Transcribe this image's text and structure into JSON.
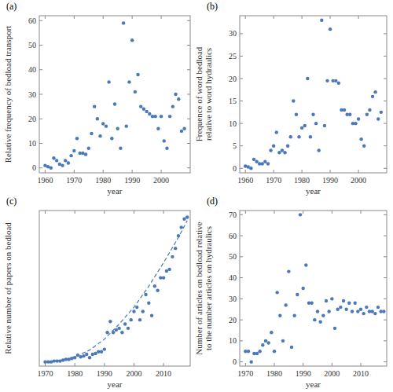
{
  "chart_data": [
    {
      "type": "scatter",
      "title": "(a)",
      "x_label": "year",
      "y_label": "Relative frequency of bedload transport",
      "xlim": [
        1958,
        2010
      ],
      "xticks": [
        1960,
        1970,
        1980,
        1990,
        2000
      ],
      "ylim": [
        -2,
        62
      ],
      "yticks": [
        0,
        10,
        20,
        30,
        40,
        50,
        60
      ],
      "series": [
        {
          "color": "#4a78b8",
          "marker": "circle",
          "x": [
            1960,
            1961,
            1962,
            1963,
            1964,
            1965,
            1966,
            1967,
            1968,
            1969,
            1970,
            1971,
            1972,
            1973,
            1974,
            1975,
            1976,
            1977,
            1978,
            1979,
            1980,
            1981,
            1982,
            1983,
            1984,
            1985,
            1986,
            1987,
            1988,
            1989,
            1990,
            1991,
            1992,
            1993,
            1994,
            1995,
            1996,
            1997,
            1998,
            1999,
            2000,
            2001,
            2002,
            2003,
            2004,
            2005,
            2006,
            2007,
            2008
          ],
          "values": [
            1,
            0.5,
            0,
            4,
            3,
            1.5,
            1,
            3,
            2,
            5,
            7,
            12,
            6,
            6,
            5.5,
            8,
            14,
            25,
            20,
            13,
            18,
            17,
            35,
            12,
            26,
            16,
            8,
            59,
            17,
            35,
            52,
            31,
            38,
            25,
            24,
            23,
            22,
            21,
            21,
            16,
            21,
            11,
            8,
            21,
            25,
            30,
            28,
            15,
            16
          ]
        }
      ]
    },
    {
      "type": "scatter",
      "title": "(b)",
      "x_label": "year",
      "y_label": "Frequence of word bedload\nrelative to word hydraulics",
      "xlim": [
        1958,
        2010
      ],
      "xticks": [
        1960,
        1970,
        1980,
        1990,
        2000
      ],
      "ylim": [
        -1,
        34
      ],
      "yticks": [
        0,
        5,
        10,
        15,
        20,
        25,
        30
      ],
      "series": [
        {
          "color": "#4a78b8",
          "marker": "circle",
          "x": [
            1960,
            1961,
            1962,
            1963,
            1964,
            1965,
            1966,
            1967,
            1968,
            1969,
            1970,
            1971,
            1972,
            1973,
            1974,
            1975,
            1976,
            1977,
            1978,
            1979,
            1980,
            1981,
            1982,
            1983,
            1984,
            1985,
            1986,
            1987,
            1988,
            1989,
            1990,
            1991,
            1992,
            1993,
            1994,
            1995,
            1996,
            1997,
            1998,
            1999,
            2000,
            2001,
            2002,
            2003,
            2004,
            2005,
            2006,
            2007,
            2008
          ],
          "values": [
            0.5,
            0.3,
            0,
            2,
            1.5,
            1,
            1,
            1.5,
            1,
            4,
            5,
            8,
            3.5,
            4,
            3.5,
            5,
            7,
            15,
            12,
            7,
            9,
            9.5,
            20,
            7,
            12,
            10,
            4,
            33,
            9.5,
            19.5,
            31,
            19.5,
            19.5,
            19,
            13,
            13,
            12,
            12,
            10,
            10,
            11,
            6.5,
            5,
            12,
            13,
            16,
            17,
            11,
            12.5
          ]
        }
      ]
    },
    {
      "type": "scatter",
      "title": "(c)",
      "x_label": "year",
      "y_label": "Relative number of papers on bedload",
      "xlim": [
        1968,
        2019
      ],
      "xticks": [
        1970,
        1980,
        1990,
        2000,
        2010
      ],
      "ylim": [
        -5,
        180
      ],
      "tick_labels": "x",
      "series": [
        {
          "color": "#4a78b8",
          "marker": "circle",
          "x": [
            1970,
            1971,
            1972,
            1973,
            1974,
            1975,
            1976,
            1977,
            1978,
            1979,
            1980,
            1981,
            1982,
            1983,
            1984,
            1985,
            1986,
            1987,
            1988,
            1989,
            1990,
            1991,
            1992,
            1993,
            1994,
            1995,
            1996,
            1997,
            1998,
            1999,
            2000,
            2001,
            2002,
            2003,
            2004,
            2005,
            2006,
            2007,
            2008,
            2009,
            2010,
            2011,
            2012,
            2013,
            2014,
            2015,
            2016,
            2017,
            2018
          ],
          "values": [
            0,
            0,
            0,
            1,
            1,
            1,
            2,
            3,
            3,
            4,
            5,
            8,
            6,
            7,
            9,
            5,
            9,
            10,
            12,
            12,
            15,
            35,
            48,
            35,
            38,
            40,
            35,
            45,
            40,
            50,
            60,
            65,
            50,
            60,
            80,
            70,
            55,
            90,
            85,
            100,
            100,
            108,
            110,
            125,
            135,
            150,
            160,
            170,
            172
          ]
        },
        {
          "type": "line",
          "line_style": "dashed",
          "color": "#4a78b8",
          "x": [
            1970,
            1975,
            1980,
            1985,
            1990,
            1995,
            2000,
            2005,
            2010,
            2015,
            2018
          ],
          "values": [
            0,
            2,
            6,
            14,
            27,
            45,
            65,
            90,
            118,
            148,
            168
          ]
        }
      ]
    },
    {
      "type": "scatter",
      "title": "(d)",
      "x_label": "year",
      "y_label": "Number of articles on bedload relative\nto the number articles on hydraulics",
      "xlim": [
        1968,
        2019
      ],
      "xticks": [
        1970,
        1980,
        1990,
        2000,
        2010
      ],
      "ylim": [
        -2,
        72
      ],
      "yticks": [
        0,
        10,
        20,
        30,
        40,
        50,
        60,
        70
      ],
      "series": [
        {
          "color": "#4a78b8",
          "marker": "circle",
          "x": [
            1970,
            1971,
            1972,
            1973,
            1974,
            1975,
            1976,
            1977,
            1978,
            1979,
            1980,
            1981,
            1982,
            1983,
            1984,
            1985,
            1986,
            1987,
            1988,
            1989,
            1990,
            1991,
            1992,
            1993,
            1994,
            1995,
            1996,
            1997,
            1998,
            1999,
            2000,
            2001,
            2002,
            2003,
            2004,
            2005,
            2006,
            2007,
            2008,
            2009,
            2010,
            2011,
            2012,
            2013,
            2014,
            2015,
            2016,
            2017,
            2018
          ],
          "values": [
            5,
            5,
            0,
            4,
            4,
            5,
            8,
            10,
            9,
            14,
            5,
            33,
            22,
            10,
            27,
            43,
            7,
            22,
            32,
            70,
            35,
            46,
            28,
            28,
            20,
            24,
            19,
            22,
            29,
            24,
            30,
            16,
            25,
            26,
            29,
            25,
            28,
            24,
            28,
            24,
            25,
            23,
            26,
            24,
            24,
            23,
            26,
            24,
            24
          ]
        }
      ]
    }
  ]
}
